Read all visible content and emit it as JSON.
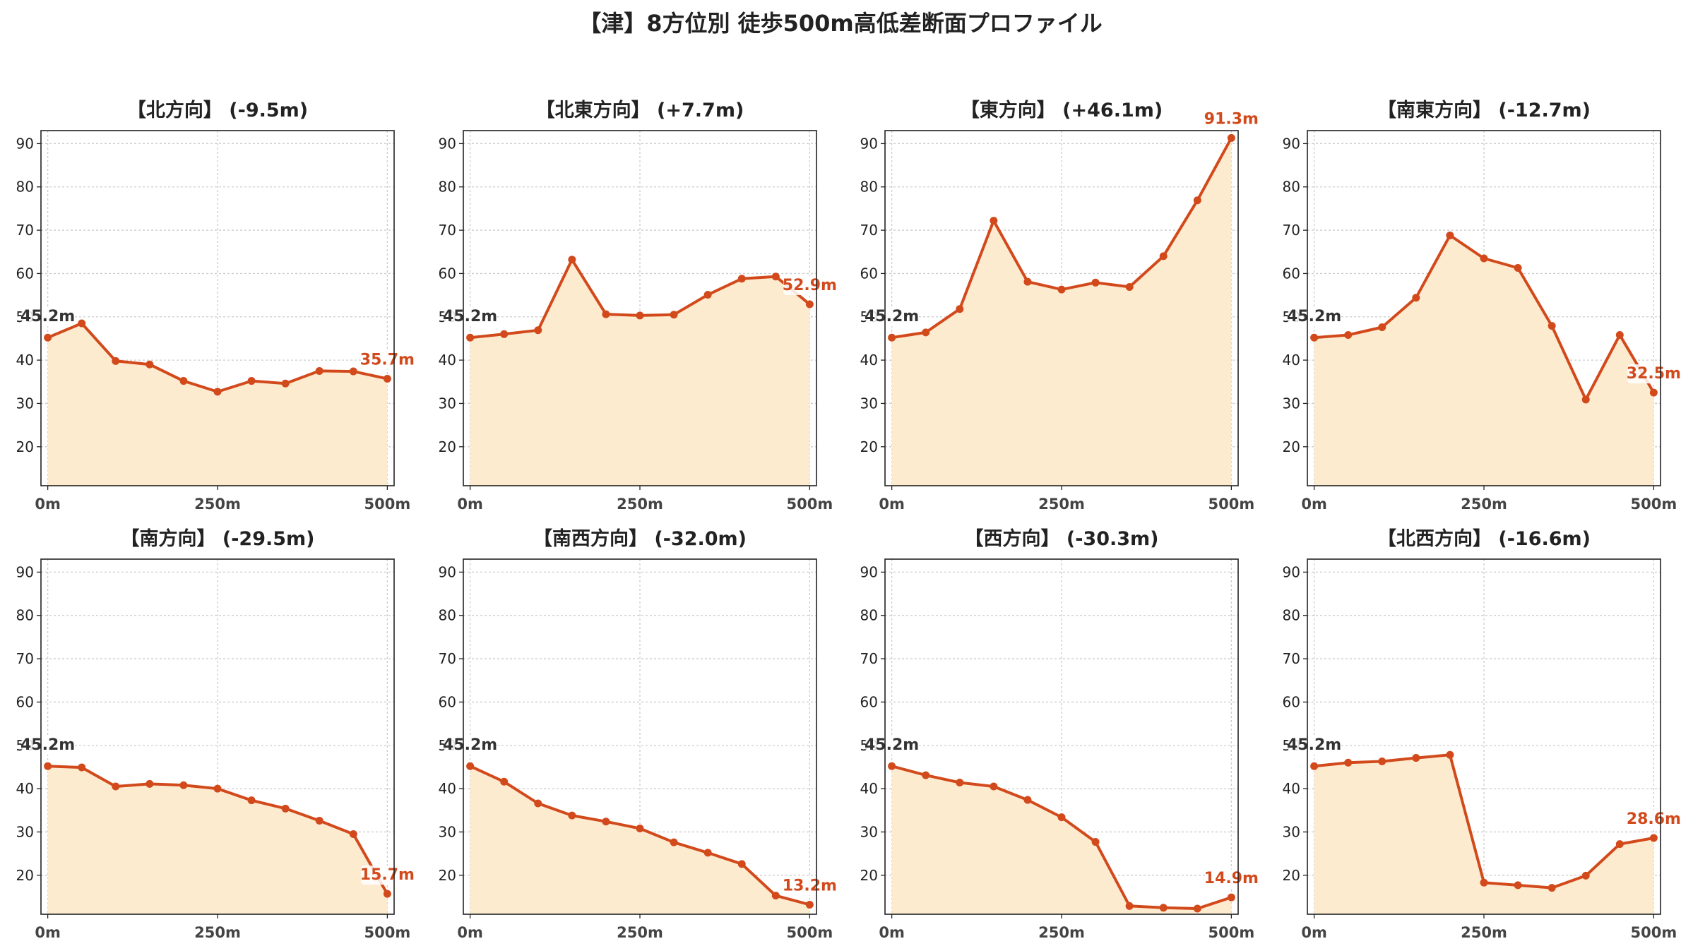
{
  "title": "【津】8方位別 徒歩500m高低差断面プロファイル",
  "colors": {
    "line": "#d24a1c",
    "fill": "#fdebd0",
    "start_label": "#333333",
    "end_label": "#d24a1c",
    "grid": "#cccccc"
  },
  "chart_data": [
    {
      "type": "area",
      "title": "【北方向】 (-9.5m)",
      "x": [
        0,
        50,
        100,
        150,
        200,
        250,
        300,
        350,
        400,
        450,
        500
      ],
      "y": [
        45.2,
        48.5,
        39.8,
        39.0,
        35.2,
        32.7,
        35.2,
        34.6,
        37.5,
        37.4,
        35.7
      ],
      "start_label": "45.2m",
      "end_label": "35.7m",
      "xticks": [
        "0m",
        "250m",
        "500m"
      ],
      "yticks": [
        20,
        30,
        40,
        50,
        60,
        70,
        80,
        90
      ],
      "xlim": [
        -10,
        510
      ],
      "ylim": [
        11,
        93
      ],
      "grid": true
    },
    {
      "type": "area",
      "title": "【北東方向】 (+7.7m)",
      "x": [
        0,
        50,
        100,
        150,
        200,
        250,
        300,
        350,
        400,
        450,
        500
      ],
      "y": [
        45.2,
        46.0,
        46.9,
        63.2,
        50.6,
        50.3,
        50.5,
        55.1,
        58.8,
        59.3,
        52.9
      ],
      "start_label": "45.2m",
      "end_label": "52.9m",
      "xticks": [
        "0m",
        "250m",
        "500m"
      ],
      "yticks": [
        20,
        30,
        40,
        50,
        60,
        70,
        80,
        90
      ],
      "xlim": [
        -10,
        510
      ],
      "ylim": [
        11,
        93
      ],
      "grid": true
    },
    {
      "type": "area",
      "title": "【東方向】 (+46.1m)",
      "x": [
        0,
        50,
        100,
        150,
        200,
        250,
        300,
        350,
        400,
        450,
        500
      ],
      "y": [
        45.2,
        46.4,
        51.8,
        72.2,
        58.1,
        56.3,
        57.9,
        56.9,
        64.0,
        76.9,
        91.3
      ],
      "start_label": "45.2m",
      "end_label": "91.3m",
      "xticks": [
        "0m",
        "250m",
        "500m"
      ],
      "yticks": [
        20,
        30,
        40,
        50,
        60,
        70,
        80,
        90
      ],
      "xlim": [
        -10,
        510
      ],
      "ylim": [
        11,
        93
      ],
      "grid": true
    },
    {
      "type": "area",
      "title": "【南東方向】 (-12.7m)",
      "x": [
        0,
        50,
        100,
        150,
        200,
        250,
        300,
        350,
        400,
        450,
        500
      ],
      "y": [
        45.2,
        45.8,
        47.6,
        54.4,
        68.8,
        63.5,
        61.3,
        47.9,
        30.9,
        45.8,
        32.5
      ],
      "start_label": "45.2m",
      "end_label": "32.5m",
      "xticks": [
        "0m",
        "250m",
        "500m"
      ],
      "yticks": [
        20,
        30,
        40,
        50,
        60,
        70,
        80,
        90
      ],
      "xlim": [
        -10,
        510
      ],
      "ylim": [
        11,
        93
      ],
      "grid": true
    },
    {
      "type": "area",
      "title": "【南方向】 (-29.5m)",
      "x": [
        0,
        50,
        100,
        150,
        200,
        250,
        300,
        350,
        400,
        450,
        500
      ],
      "y": [
        45.2,
        44.9,
        40.5,
        41.1,
        40.8,
        40.0,
        37.3,
        35.4,
        32.6,
        29.5,
        15.7
      ],
      "start_label": "45.2m",
      "end_label": "15.7m",
      "xticks": [
        "0m",
        "250m",
        "500m"
      ],
      "yticks": [
        20,
        30,
        40,
        50,
        60,
        70,
        80,
        90
      ],
      "xlim": [
        -10,
        510
      ],
      "ylim": [
        11,
        93
      ],
      "grid": true
    },
    {
      "type": "area",
      "title": "【南西方向】 (-32.0m)",
      "x": [
        0,
        50,
        100,
        150,
        200,
        250,
        300,
        350,
        400,
        450,
        500
      ],
      "y": [
        45.2,
        41.6,
        36.6,
        33.8,
        32.4,
        30.8,
        27.6,
        25.2,
        22.6,
        15.3,
        13.2
      ],
      "start_label": "45.2m",
      "end_label": "13.2m",
      "xticks": [
        "0m",
        "250m",
        "500m"
      ],
      "yticks": [
        20,
        30,
        40,
        50,
        60,
        70,
        80,
        90
      ],
      "xlim": [
        -10,
        510
      ],
      "ylim": [
        11,
        93
      ],
      "grid": true
    },
    {
      "type": "area",
      "title": "【西方向】 (-30.3m)",
      "x": [
        0,
        50,
        100,
        150,
        200,
        250,
        300,
        350,
        400,
        450,
        500
      ],
      "y": [
        45.2,
        43.1,
        41.4,
        40.5,
        37.4,
        33.4,
        27.7,
        12.9,
        12.5,
        12.3,
        14.9
      ],
      "start_label": "45.2m",
      "end_label": "14.9m",
      "xticks": [
        "0m",
        "250m",
        "500m"
      ],
      "yticks": [
        20,
        30,
        40,
        50,
        60,
        70,
        80,
        90
      ],
      "xlim": [
        -10,
        510
      ],
      "ylim": [
        11,
        93
      ],
      "grid": true
    },
    {
      "type": "area",
      "title": "【北西方向】 (-16.6m)",
      "x": [
        0,
        50,
        100,
        150,
        200,
        250,
        300,
        350,
        400,
        450,
        500
      ],
      "y": [
        45.2,
        46.0,
        46.3,
        47.1,
        47.8,
        18.3,
        17.7,
        17.1,
        19.9,
        27.2,
        28.6
      ],
      "start_label": "45.2m",
      "end_label": "28.6m",
      "xticks": [
        "0m",
        "250m",
        "500m"
      ],
      "yticks": [
        20,
        30,
        40,
        50,
        60,
        70,
        80,
        90
      ],
      "xlim": [
        -10,
        510
      ],
      "ylim": [
        11,
        93
      ],
      "grid": true
    }
  ]
}
